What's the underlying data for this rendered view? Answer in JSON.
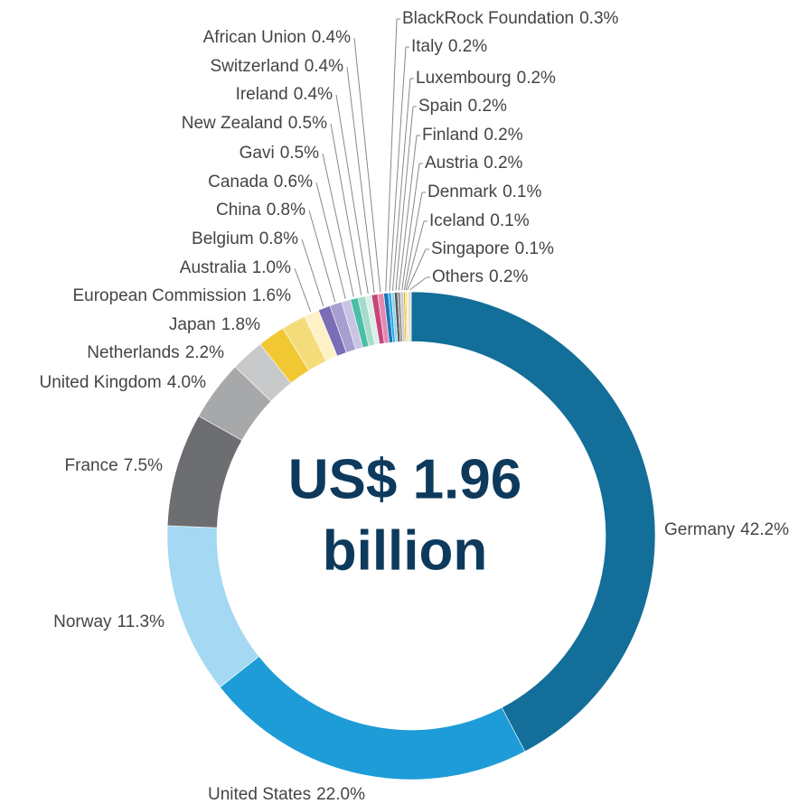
{
  "chart_data": {
    "type": "donut",
    "center_text": [
      "US$ 1.96",
      "billion"
    ],
    "categories": [
      "Germany",
      "United States",
      "Norway",
      "France",
      "United Kingdom",
      "Netherlands",
      "Japan",
      "European Commission",
      "Australia",
      "Belgium",
      "China",
      "Canada",
      "Gavi",
      "New Zealand",
      "Ireland",
      "Switzerland",
      "African Union",
      "BlackRock Foundation",
      "Italy",
      "Luxembourg",
      "Spain",
      "Finland",
      "Austria",
      "Denmark",
      "Iceland",
      "Singapore",
      "Others"
    ],
    "values": [
      42.2,
      22.0,
      11.3,
      7.5,
      4.0,
      2.2,
      1.8,
      1.6,
      1.0,
      0.8,
      0.8,
      0.6,
      0.5,
      0.5,
      0.4,
      0.4,
      0.4,
      0.3,
      0.2,
      0.2,
      0.2,
      0.2,
      0.2,
      0.1,
      0.1,
      0.1,
      0.2
    ],
    "value_labels": [
      "42.2%",
      "22.0%",
      "11.3%",
      "7.5%",
      "4.0%",
      "2.2%",
      "1.8%",
      "1.6%",
      "1.0%",
      "0.8%",
      "0.8%",
      "0.6%",
      "0.5%",
      "0.5%",
      "0.4%",
      "0.4%",
      "0.4%",
      "0.3%",
      "0.2%",
      "0.2%",
      "0.2%",
      "0.2%",
      "0.2%",
      "0.1%",
      "0.1%",
      "0.1%",
      "0.2%"
    ],
    "colors": [
      "#136f99",
      "#1e9cd7",
      "#a4d8f3",
      "#6d6e71",
      "#a7a8aa",
      "#c8c9cb",
      "#f2c832",
      "#f5dc7a",
      "#fcf2c6",
      "#7a6db5",
      "#a89fd0",
      "#cac4e4",
      "#4bbfa5",
      "#a6dccc",
      "#d9efe8",
      "#c9437a",
      "#e48aaf",
      "#1b75bb",
      "#29abe2",
      "#8ed2f0",
      "#555555",
      "#999999",
      "#cccccc",
      "#e0b000",
      "#f0d060",
      "#f8eaa8",
      "#dddddd"
    ]
  }
}
